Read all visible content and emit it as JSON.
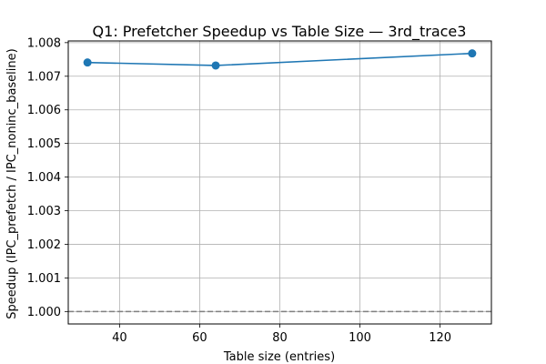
{
  "chart_data": {
    "type": "line",
    "title": "Q1: Prefetcher Speedup vs Table Size — 3rd_trace3",
    "xlabel": "Table size (entries)",
    "ylabel": "Speedup (IPC_prefetch / IPC_noninc_baseline)",
    "x": [
      32,
      64,
      128
    ],
    "series": [
      {
        "values": [
          1.00741,
          1.00732,
          1.00768
        ],
        "color": "#1f77b4",
        "marker": "circle"
      }
    ],
    "reference_line": {
      "y": 1.0,
      "color": "#808080",
      "style": "dashed"
    },
    "xlim": [
      27.2,
      132.8
    ],
    "ylim": [
      0.99963,
      1.00805
    ],
    "xticks": [
      40,
      60,
      80,
      100,
      120
    ],
    "yticks": [
      1.0,
      1.001,
      1.002,
      1.003,
      1.004,
      1.005,
      1.006,
      1.007,
      1.008
    ],
    "xtick_labels": [
      "40",
      "60",
      "80",
      "100",
      "120"
    ],
    "ytick_labels": [
      "1.000",
      "1.001",
      "1.002",
      "1.003",
      "1.004",
      "1.005",
      "1.006",
      "1.007",
      "1.008"
    ],
    "grid": true,
    "legend": "none"
  }
}
